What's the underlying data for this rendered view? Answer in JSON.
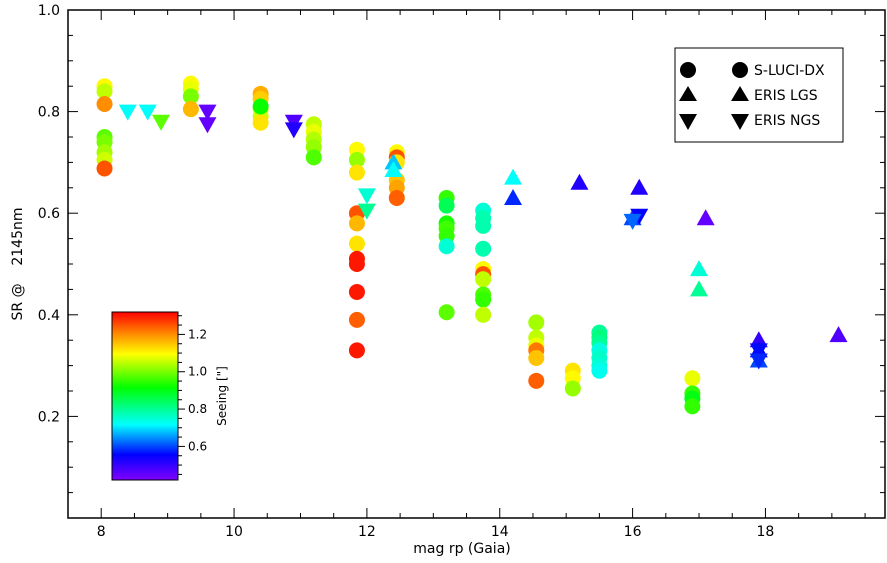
{
  "chart_data": {
    "type": "scatter",
    "title": "",
    "xlabel": "mag rp (Gaia)",
    "ylabel": "SR @    2145nm",
    "xlim": [
      7.5,
      19.8
    ],
    "ylim": [
      0.0,
      1.0
    ],
    "x_ticks": [
      8,
      10,
      12,
      14,
      16,
      18
    ],
    "y_ticks": [
      0.2,
      0.4,
      0.6,
      0.8,
      1.0
    ],
    "x_tick_labels": [
      "8",
      "10",
      "12",
      "14",
      "16",
      "18"
    ],
    "y_tick_labels": [
      "0.2",
      "0.4",
      "0.6",
      "0.8",
      "1.0"
    ],
    "grid": false,
    "legend_position": "top-right",
    "legend": [
      {
        "name": "S-LUCI-DX",
        "marker": "circle"
      },
      {
        "name": "ERIS LGS",
        "marker": "triangle-up"
      },
      {
        "name": "ERIS NGS",
        "marker": "triangle-down"
      }
    ],
    "colorbar": {
      "label": "Seeing [\"]",
      "range": [
        0.42,
        1.32
      ],
      "ticks": [
        0.6,
        0.8,
        1.0,
        1.2
      ],
      "tick_labels": [
        "0.6",
        "0.8",
        "1.0",
        "1.2"
      ],
      "colormap": "rainbow (violet-blue-cyan-green-yellow-red)"
    },
    "series": [
      {
        "marker": "circle",
        "points": [
          [
            8.05,
            0.85,
            1.1
          ],
          [
            8.05,
            0.84,
            1.05
          ],
          [
            8.05,
            0.815,
            1.2
          ],
          [
            8.05,
            0.75,
            0.98
          ],
          [
            8.05,
            0.74,
            1.0
          ],
          [
            8.05,
            0.72,
            1.03
          ],
          [
            8.05,
            0.705,
            1.06
          ],
          [
            8.05,
            0.688,
            1.25
          ],
          [
            9.35,
            0.855,
            1.1
          ],
          [
            9.35,
            0.845,
            1.08
          ],
          [
            9.35,
            0.83,
            1.0
          ],
          [
            9.35,
            0.805,
            1.16
          ],
          [
            10.4,
            0.835,
            1.17
          ],
          [
            10.4,
            0.825,
            1.14
          ],
          [
            10.4,
            0.805,
            1.1
          ],
          [
            10.4,
            0.79,
            1.06
          ],
          [
            10.4,
            0.778,
            1.12
          ],
          [
            10.4,
            0.81,
            0.92
          ],
          [
            11.2,
            0.775,
            1.05
          ],
          [
            11.2,
            0.76,
            1.08
          ],
          [
            11.2,
            0.745,
            1.04
          ],
          [
            11.2,
            0.73,
            1.02
          ],
          [
            11.2,
            0.71,
            0.97
          ],
          [
            11.85,
            0.725,
            1.1
          ],
          [
            11.85,
            0.705,
            1.02
          ],
          [
            11.85,
            0.68,
            1.12
          ],
          [
            11.85,
            0.6,
            1.25
          ],
          [
            11.85,
            0.58,
            1.16
          ],
          [
            11.85,
            0.54,
            1.12
          ],
          [
            11.85,
            0.51,
            1.3
          ],
          [
            11.85,
            0.5,
            1.3
          ],
          [
            11.85,
            0.445,
            1.3
          ],
          [
            11.85,
            0.39,
            1.24
          ],
          [
            11.85,
            0.33,
            1.3
          ],
          [
            12.45,
            0.72,
            1.1
          ],
          [
            12.45,
            0.71,
            1.25
          ],
          [
            12.45,
            0.7,
            1.12
          ],
          [
            12.45,
            0.665,
            1.15
          ],
          [
            12.45,
            0.65,
            1.18
          ],
          [
            12.45,
            0.63,
            1.24
          ],
          [
            13.2,
            0.63,
            0.95
          ],
          [
            13.2,
            0.615,
            0.85
          ],
          [
            13.2,
            0.58,
            0.93
          ],
          [
            13.2,
            0.57,
            0.96
          ],
          [
            13.2,
            0.555,
            0.95
          ],
          [
            13.2,
            0.535,
            0.75
          ],
          [
            13.2,
            0.405,
            0.98
          ],
          [
            13.75,
            0.605,
            0.75
          ],
          [
            13.75,
            0.59,
            0.78
          ],
          [
            13.75,
            0.575,
            0.78
          ],
          [
            13.75,
            0.53,
            0.78
          ],
          [
            13.75,
            0.49,
            1.1
          ],
          [
            13.75,
            0.48,
            1.25
          ],
          [
            13.75,
            0.47,
            1.05
          ],
          [
            13.75,
            0.44,
            0.97
          ],
          [
            13.75,
            0.43,
            0.95
          ],
          [
            13.75,
            0.4,
            1.05
          ],
          [
            14.55,
            0.385,
            1.03
          ],
          [
            14.55,
            0.355,
            1.05
          ],
          [
            14.55,
            0.34,
            1.08
          ],
          [
            14.55,
            0.33,
            1.22
          ],
          [
            14.55,
            0.315,
            1.15
          ],
          [
            14.55,
            0.27,
            1.24
          ],
          [
            15.1,
            0.29,
            1.12
          ],
          [
            15.1,
            0.275,
            1.1
          ],
          [
            15.1,
            0.255,
            1.02
          ],
          [
            15.5,
            0.365,
            0.8
          ],
          [
            15.5,
            0.355,
            0.82
          ],
          [
            15.5,
            0.345,
            0.8
          ],
          [
            15.5,
            0.33,
            0.74
          ],
          [
            15.5,
            0.315,
            0.76
          ],
          [
            15.5,
            0.3,
            0.75
          ],
          [
            15.5,
            0.29,
            0.73
          ],
          [
            16.9,
            0.275,
            1.08
          ],
          [
            16.9,
            0.245,
            0.95
          ],
          [
            16.9,
            0.235,
            0.9
          ],
          [
            16.9,
            0.22,
            0.95
          ]
        ]
      },
      {
        "marker": "triangle-up",
        "points": [
          [
            12.4,
            0.7,
            0.68
          ],
          [
            12.4,
            0.685,
            0.72
          ],
          [
            14.2,
            0.67,
            0.72
          ],
          [
            14.2,
            0.63,
            0.58
          ],
          [
            15.2,
            0.66,
            0.52
          ],
          [
            16.1,
            0.65,
            0.52
          ],
          [
            16.0,
            0.59,
            0.6
          ],
          [
            17.0,
            0.49,
            0.75
          ],
          [
            17.0,
            0.45,
            0.8
          ],
          [
            17.1,
            0.59,
            0.45
          ],
          [
            17.9,
            0.35,
            0.5
          ],
          [
            17.9,
            0.33,
            0.55
          ],
          [
            17.9,
            0.31,
            0.6
          ],
          [
            19.1,
            0.36,
            0.47
          ]
        ]
      },
      {
        "marker": "triangle-down",
        "points": [
          [
            8.4,
            0.8,
            0.72
          ],
          [
            8.7,
            0.8,
            0.72
          ],
          [
            8.9,
            0.78,
            0.98
          ],
          [
            9.6,
            0.8,
            0.45
          ],
          [
            9.6,
            0.775,
            0.45
          ],
          [
            10.9,
            0.78,
            0.47
          ],
          [
            10.9,
            0.765,
            0.52
          ],
          [
            12.0,
            0.635,
            0.75
          ],
          [
            12.0,
            0.605,
            0.8
          ],
          [
            16.1,
            0.595,
            0.55
          ],
          [
            16.0,
            0.585,
            0.62
          ],
          [
            17.9,
            0.33,
            0.56
          ],
          [
            17.9,
            0.31,
            0.58
          ]
        ]
      }
    ]
  }
}
